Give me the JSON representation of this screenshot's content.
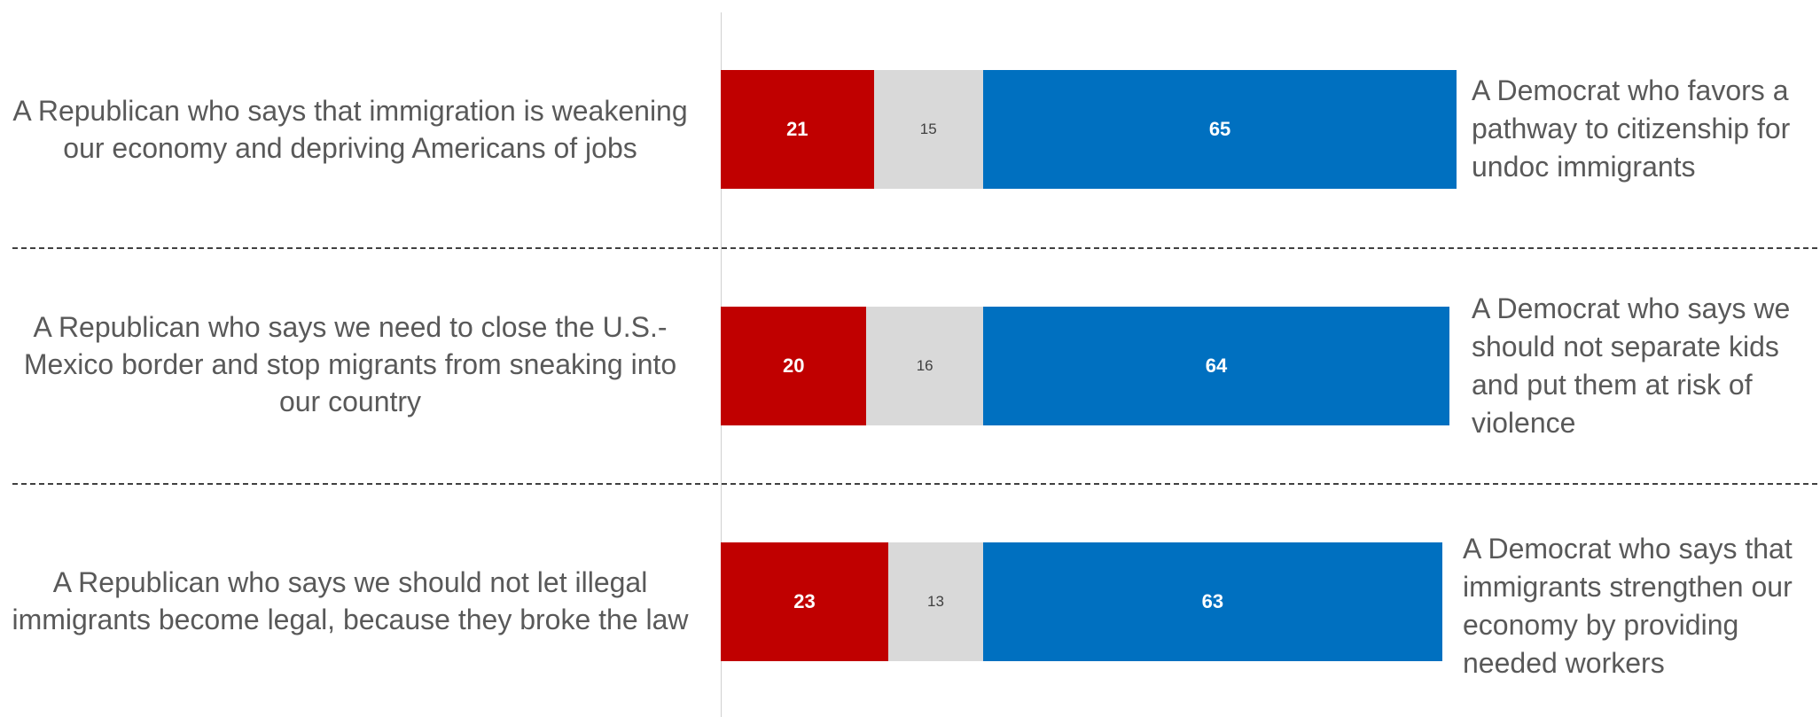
{
  "chart_data": {
    "type": "bar",
    "orientation": "horizontal",
    "stacked": true,
    "categories": [
      "A Republican who says that immigration is weakening our economy and depriving Americans of jobs",
      "A Republican who says we need to close the U.S.-Mexico border and stop migrants from sneaking into our country",
      "A Republican who says we should not let illegal immigrants become legal, because they broke the law"
    ],
    "right_labels": [
      "A Democrat who favors a pathway to citizenship for undoc immigrants",
      "A Democrat who says we should not separate kids and put them at risk of violence",
      "A Democrat who says that immigrants strengthen our economy by providing needed workers"
    ],
    "series": [
      {
        "values": [
          21,
          20,
          23
        ],
        "color": "#c00000"
      },
      {
        "values": [
          15,
          16,
          13
        ],
        "color": "#d9d9d9"
      },
      {
        "values": [
          65,
          64,
          63
        ],
        "color": "#0070c0"
      }
    ],
    "xlim": [
      0,
      100
    ],
    "grid": false,
    "legend": "none"
  }
}
